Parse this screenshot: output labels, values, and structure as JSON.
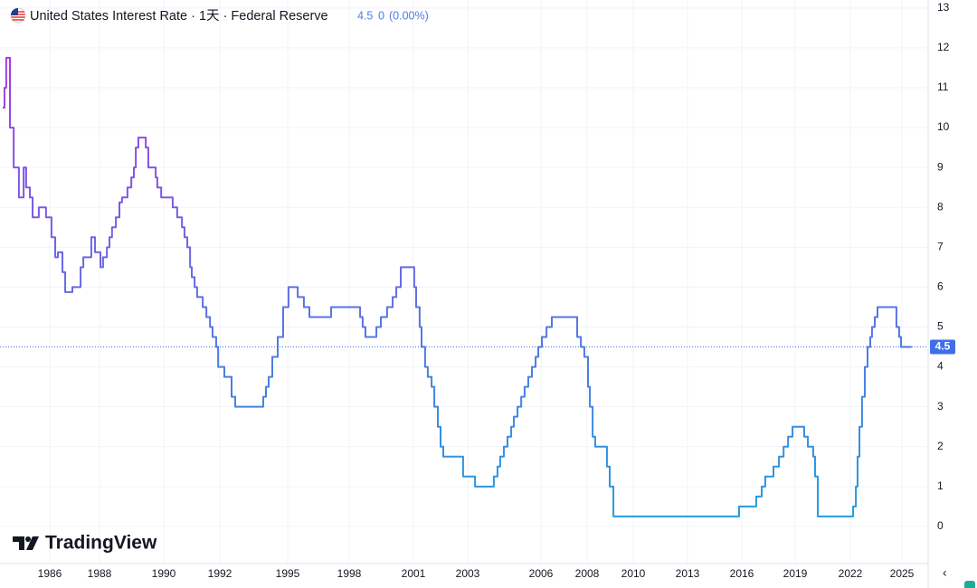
{
  "chart_data": {
    "type": "line",
    "title": "United States Interest Rate · 1天 · Federal Reserve",
    "quote": {
      "last": 4.5,
      "change": 0,
      "change_percent": "(0.00%)"
    },
    "step": true,
    "grid": true,
    "line_colors": {
      "high": "#a63be6",
      "low": "#1f9ee2"
    },
    "price_line_color": "#3f6ee8",
    "watermark": "TradingView",
    "xlim": [
      1984,
      2026.5
    ],
    "xticks": [
      1986,
      1988,
      1990,
      1992,
      1995,
      1998,
      2001,
      2003,
      2006,
      2008,
      2010,
      2013,
      2016,
      2019,
      2022,
      2025
    ],
    "ylim": [
      -1,
      13.2
    ],
    "yticks": [
      0,
      1,
      2,
      3,
      4,
      5,
      6,
      7,
      8,
      9,
      10,
      11,
      12,
      13
    ],
    "series": [
      {
        "name": "United States Interest Rate",
        "x": [
          1984.11,
          1984.18,
          1984.25,
          1984.4,
          1984.55,
          1984.76,
          1984.95,
          1985.05,
          1985.2,
          1985.31,
          1985.56,
          1985.85,
          1986.07,
          1986.22,
          1986.33,
          1986.51,
          1986.62,
          1986.91,
          1987.24,
          1987.35,
          1987.67,
          1987.82,
          1988.03,
          1988.11,
          1988.23,
          1988.31,
          1988.39,
          1988.51,
          1988.62,
          1988.7,
          1988.87,
          1988.99,
          1989.07,
          1989.13,
          1989.21,
          1989.44,
          1989.52,
          1989.75,
          1989.8,
          1989.92,
          1990.32,
          1990.48,
          1990.65,
          1990.74,
          1990.84,
          1990.94,
          1991.0,
          1991.1,
          1991.19,
          1991.39,
          1991.52,
          1991.65,
          1991.74,
          1991.87,
          1991.94,
          1992.2,
          1992.52,
          1992.68,
          1993.92,
          1994.04,
          1994.16,
          1994.32,
          1994.56,
          1994.8,
          1995.04,
          1995.49,
          1995.79,
          1996.06,
          1997.12,
          1998.51,
          1998.63,
          1998.76,
          1999.27,
          1999.48,
          1999.77,
          2000.03,
          2000.2,
          2000.41,
          2001.03,
          2001.1,
          2001.23,
          2001.3,
          2001.43,
          2001.53,
          2001.67,
          2001.77,
          2001.9,
          2002.0,
          2002.1,
          2002.83,
          2003.3,
          2004.07,
          2004.22,
          2004.33,
          2004.48,
          2004.63,
          2004.78,
          2004.89,
          2005.04,
          2005.19,
          2005.33,
          2005.48,
          2005.63,
          2005.78,
          2005.89,
          2006.04,
          2006.24,
          2006.47,
          2007.57,
          2007.73,
          2007.88,
          2008.04,
          2008.12,
          2008.24,
          2008.35,
          2008.86,
          2008.98,
          2009.14,
          2015.85,
          2016.81,
          2017.12,
          2017.32,
          2017.78,
          2018.09,
          2018.35,
          2018.6,
          2018.85,
          2019.49,
          2019.69,
          2019.98,
          2020.08,
          2020.23,
          2022.16,
          2022.32,
          2022.42,
          2022.53,
          2022.68,
          2022.84,
          2023.0,
          2023.16,
          2023.26,
          2023.42,
          2023.58,
          2024.68,
          2024.84,
          2024.95,
          2025.58
        ],
        "values": [
          10.5,
          11,
          11.75,
          10,
          9,
          8.25,
          9,
          8.5,
          8.25,
          7.75,
          8,
          7.75,
          7.25,
          6.75,
          6.875,
          6.375,
          5.875,
          6,
          6.5,
          6.75,
          7.25,
          6.875,
          6.5,
          6.75,
          7,
          7.25,
          7.5,
          7.75,
          8.125,
          8.25,
          8.5,
          8.75,
          9,
          9.5,
          9.75,
          9.5,
          9,
          8.75,
          8.5,
          8.25,
          8,
          7.75,
          7.5,
          7.25,
          7,
          6.5,
          6.25,
          6,
          5.75,
          5.5,
          5.25,
          5,
          4.75,
          4.5,
          4,
          3.75,
          3.25,
          3,
          3.25,
          3.5,
          3.75,
          4.25,
          4.75,
          5.5,
          6,
          5.75,
          5.5,
          5.25,
          5.5,
          5.25,
          5,
          4.75,
          5,
          5.25,
          5.5,
          5.75,
          6,
          6.5,
          6,
          5.5,
          5,
          4.5,
          4,
          3.75,
          3.5,
          3,
          2.5,
          2,
          1.75,
          1.25,
          1,
          1.25,
          1.5,
          1.75,
          2,
          2.25,
          2.5,
          2.75,
          3,
          3.25,
          3.5,
          3.75,
          4,
          4.25,
          4.5,
          4.75,
          5,
          5.25,
          4.75,
          4.5,
          4.25,
          3.5,
          3,
          2.25,
          2,
          1.5,
          1,
          0.25,
          0.5,
          0.75,
          1,
          1.25,
          1.5,
          1.75,
          2,
          2.25,
          2.5,
          2.25,
          2,
          1.75,
          1.25,
          0.25,
          0.5,
          1,
          1.75,
          2.5,
          3.25,
          4,
          4.5,
          4.75,
          5,
          5.25,
          5.5,
          5,
          4.75,
          4.5,
          4.5
        ]
      }
    ]
  }
}
